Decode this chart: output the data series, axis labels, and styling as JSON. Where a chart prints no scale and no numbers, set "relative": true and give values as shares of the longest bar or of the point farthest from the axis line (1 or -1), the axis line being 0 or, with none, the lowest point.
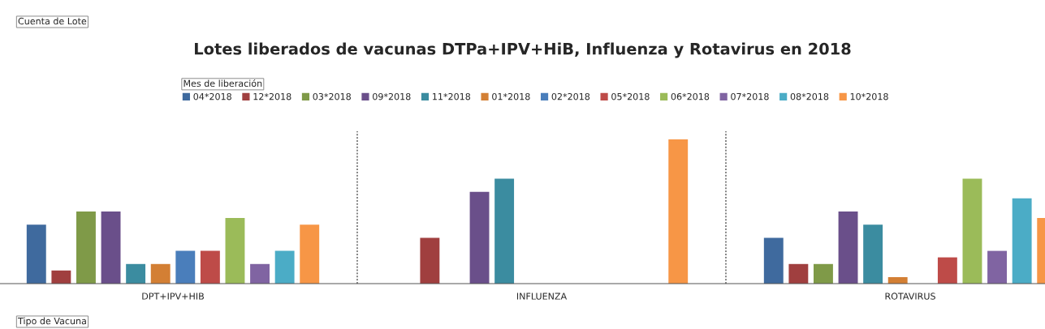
{
  "chart_data": {
    "type": "bar",
    "title": "Lotes liberados de vacunas DTPa+IPV+HiB, Influenza y Rotavirus en 2018",
    "annotations": [
      "Cuenta de Lote"
    ],
    "xlabel": "Tipo de Vacuna",
    "legend_title": "Mes de liberación",
    "legend": "top",
    "relative": true,
    "grid": "x",
    "categories": [
      "DPT+IPV+HIB",
      "INFLUENZA",
      "ROTAVIRUS"
    ],
    "series": [
      {
        "name": "04*2018",
        "color": "#3f6a9e",
        "values": [
          0.409,
          null,
          0.318
        ]
      },
      {
        "name": "12*2018",
        "color": "#a03f3f",
        "values": [
          0.091,
          0.318,
          0.136
        ]
      },
      {
        "name": "03*2018",
        "color": "#7f9a48",
        "values": [
          0.5,
          null,
          0.136
        ]
      },
      {
        "name": "09*2018",
        "color": "#6a4f8a",
        "values": [
          0.5,
          0.636,
          0.5
        ]
      },
      {
        "name": "11*2018",
        "color": "#3b8ca0",
        "values": [
          0.136,
          0.727,
          0.409
        ]
      },
      {
        "name": "01*2018",
        "color": "#d37f34",
        "values": [
          0.136,
          null,
          0.045
        ]
      },
      {
        "name": "02*2018",
        "color": "#4a7ebb",
        "values": [
          0.227,
          null,
          null
        ]
      },
      {
        "name": "05*2018",
        "color": "#be4b48",
        "values": [
          0.227,
          null,
          0.182
        ]
      },
      {
        "name": "06*2018",
        "color": "#9bbb59",
        "values": [
          0.455,
          null,
          0.727
        ]
      },
      {
        "name": "07*2018",
        "color": "#8064a2",
        "values": [
          0.136,
          null,
          0.227
        ]
      },
      {
        "name": "08*2018",
        "color": "#4bacc6",
        "values": [
          0.227,
          null,
          0.591
        ]
      },
      {
        "name": "10*2018",
        "color": "#f79646",
        "values": [
          0.409,
          1,
          0.455
        ]
      }
    ]
  }
}
